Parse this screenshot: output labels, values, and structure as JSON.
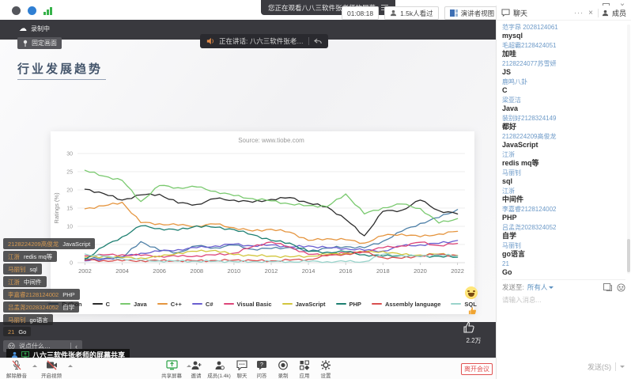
{
  "window": {
    "watching_tooltip": "您正在观看八八三软件张老师的屏幕",
    "timer": "01:08:18",
    "viewers": "1.5k人看过",
    "view_mode": "演讲者视图",
    "chat_tab": "聊天",
    "members_tab": "成员"
  },
  "overlays": {
    "recording_label": "录制中",
    "pin_label": "固定画面",
    "speaking_label": "正在讲话: 八六三软件张老…",
    "like_count": "2.2万",
    "share_banner": "八六三软件张老师的屏幕共享",
    "bullet_input_placeholder": "说点什么…"
  },
  "slide": {
    "title": "行业发展趋势"
  },
  "chart_data": {
    "type": "line",
    "title": "Source: www.tiobe.com",
    "ylabel": "Ratings (%)",
    "ylim": [
      0,
      30
    ],
    "y_ticks": [
      0,
      5,
      10,
      15,
      20,
      25,
      30
    ],
    "x_ticks": [
      2002,
      2004,
      2006,
      2008,
      2010,
      2012,
      2014,
      2016,
      2018,
      2020,
      2022
    ],
    "x": [
      2002,
      2003,
      2004,
      2005,
      2006,
      2007,
      2008,
      2009,
      2010,
      2011,
      2012,
      2013,
      2014,
      2015,
      2016,
      2017,
      2018,
      2019,
      2020,
      2021,
      2022
    ],
    "legend_position": "bottom",
    "grid": "horizontal",
    "series": [
      {
        "name": "Python",
        "color": "#4f81a8",
        "values": [
          1.2,
          1.1,
          1.4,
          5.8,
          3.4,
          2.8,
          4.6,
          4.1,
          4.8,
          3.7,
          3.9,
          4.2,
          3.1,
          4.0,
          4.4,
          4.1,
          5.9,
          8.6,
          10.8,
          12.4,
          14.6
        ]
      },
      {
        "name": "C",
        "color": "#2b2b2b",
        "values": [
          20.2,
          19.0,
          17.2,
          18.6,
          18.8,
          16.4,
          16.0,
          17.6,
          17.2,
          16.6,
          17.4,
          17.9,
          16.4,
          15.3,
          11.9,
          7.4,
          14.1,
          14.4,
          17.2,
          14.3,
          13.4
        ]
      },
      {
        "name": "Java",
        "color": "#79c96e",
        "values": [
          25.4,
          23.8,
          22.6,
          16.8,
          21.2,
          20.6,
          20.8,
          19.6,
          18.4,
          17.6,
          17.0,
          16.1,
          15.7,
          15.4,
          18.9,
          13.4,
          15.1,
          16.1,
          14.9,
          10.9,
          12.1
        ]
      },
      {
        "name": "C++",
        "color": "#e5953f",
        "values": [
          14.8,
          15.6,
          16.6,
          11.0,
          10.7,
          10.3,
          10.1,
          10.6,
          9.6,
          8.7,
          9.2,
          8.4,
          6.1,
          6.6,
          6.3,
          5.4,
          7.4,
          7.9,
          7.1,
          7.9,
          8.6
        ]
      },
      {
        "name": "C#",
        "color": "#6a5fd0",
        "values": [
          0.5,
          1.0,
          1.6,
          2.6,
          3.1,
          3.6,
          4.1,
          4.6,
          5.1,
          4.6,
          4.9,
          4.3,
          4.6,
          4.1,
          3.9,
          3.4,
          3.2,
          4.6,
          4.9,
          5.3,
          6.1
        ]
      },
      {
        "name": "Visual Basic",
        "color": "#dd4579",
        "values": [
          1.9,
          2.1,
          2.2,
          2.0,
          1.8,
          1.7,
          1.9,
          2.1,
          2.6,
          4.4,
          5.7,
          4.3,
          2.3,
          2.1,
          2.6,
          3.1,
          4.1,
          4.6,
          5.6,
          4.7,
          5.3
        ]
      },
      {
        "name": "JavaScript",
        "color": "#d2c63d",
        "values": [
          1.5,
          1.7,
          1.4,
          1.3,
          1.6,
          2.7,
          3.1,
          3.4,
          2.2,
          2.0,
          1.8,
          1.6,
          1.8,
          2.3,
          2.6,
          2.9,
          3.1,
          2.2,
          2.1,
          2.4,
          2.0
        ]
      },
      {
        "name": "PHP",
        "color": "#1d7f71",
        "values": [
          0.9,
          4.4,
          7.1,
          10.1,
          9.4,
          8.9,
          10.1,
          9.7,
          9.1,
          7.7,
          6.1,
          5.4,
          3.1,
          2.9,
          3.0,
          2.2,
          1.8,
          2.0,
          1.7,
          1.8,
          1.5
        ]
      },
      {
        "name": "Assembly language",
        "color": "#d94f4f",
        "values": [
          0.7,
          0.6,
          0.5,
          0.6,
          0.5,
          0.6,
          0.5,
          0.6,
          0.7,
          0.6,
          0.5,
          0.7,
          0.9,
          1.9,
          2.4,
          2.9,
          1.4,
          1.2,
          1.9,
          2.3,
          1.9
        ]
      },
      {
        "name": "SQL",
        "color": "#9ad4cc",
        "values": [
          2.4,
          1.7,
          1.1,
          0.7,
          0.5,
          0.4,
          0.4,
          0.4,
          0.3,
          0.3,
          0.3,
          0.3,
          0.3,
          0.3,
          0.3,
          0.3,
          2.3,
          2.0,
          1.8,
          2.1,
          1.9
        ]
      }
    ]
  },
  "bullet_chat": [
    {
      "name": "2128224209高俊龙",
      "text": "JavaScript"
    },
    {
      "name": "江浙",
      "text": "redis  mq等"
    },
    {
      "name": "马丽钊",
      "text": "sql"
    },
    {
      "name": "江浙",
      "text": "中间件"
    },
    {
      "name": "李嘉睿2128124002",
      "text": "PHP"
    },
    {
      "name": "吕孟尧2028324052",
      "text": "自学"
    },
    {
      "name": "马丽钊",
      "text": "go语言"
    },
    {
      "name": "21",
      "text": "Go"
    }
  ],
  "chat_panel": {
    "messages": [
      {
        "name": "范字昂 2028124061",
        "text": "mysql"
      },
      {
        "name": "毛超霸2128424051",
        "text": "加哇"
      },
      {
        "name": "2128224077苏雪妍",
        "text": "JS"
      },
      {
        "name": "鹿鸣八卦",
        "text": "C"
      },
      {
        "name": "梁亚洁",
        "text": "Java"
      },
      {
        "name": "装别好2128324149",
        "text": "都好"
      },
      {
        "name": "2128224209高俊龙",
        "text": "JavaScript"
      },
      {
        "name": "江浙",
        "text": "redis  mq等"
      },
      {
        "name": "马丽钊",
        "text": "sql"
      },
      {
        "name": "江浙",
        "text": "中间件"
      },
      {
        "name": "李嘉睿2128124002",
        "text": "PHP"
      },
      {
        "name": "吕孟尧2028324052",
        "text": "自学"
      },
      {
        "name": "马丽钊",
        "text": "go语言"
      },
      {
        "name": "21",
        "text": "Go"
      }
    ],
    "send_to_label": "发送至:",
    "send_to_value": "所有人",
    "input_placeholder": "请输入消息...",
    "send_button": "发送(S)"
  },
  "toolbar": {
    "unmute": "解除静音",
    "camera": "开启视频",
    "share": "共享屏幕",
    "invite": "邀请",
    "members": "成员(1.4k)",
    "chat": "聊天",
    "qa": "问答",
    "record": "录制",
    "apps": "应用",
    "settings": "设置",
    "leave": "离开会议"
  }
}
